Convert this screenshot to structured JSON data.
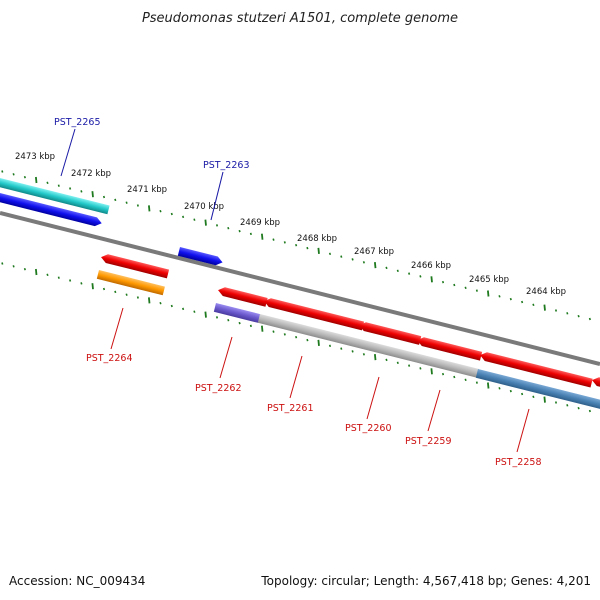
{
  "title": "Pseudomonas stutzeri A1501, complete genome",
  "footer": {
    "accession": "Accession: NC_009434",
    "summary": "Topology: circular; Length: 4,567,418 bp; Genes: 4,201"
  },
  "scale_ticks": [
    "2473 kbp",
    "2472 kbp",
    "2471 kbp",
    "2470 kbp",
    "2469 kbp",
    "2468 kbp",
    "2467 kbp",
    "2466 kbp",
    "2465 kbp",
    "2464 kbp"
  ],
  "genes": [
    {
      "id": "PST_2265",
      "color": "#1f1fd6"
    },
    {
      "id": "PST_2263",
      "color": "#1f1fd6"
    },
    {
      "id": "PST_2264",
      "color": "#cc1111"
    },
    {
      "id": "PST_2262",
      "color": "#cc1111"
    },
    {
      "id": "PST_2261",
      "color": "#cc1111"
    },
    {
      "id": "PST_2260",
      "color": "#cc1111"
    },
    {
      "id": "PST_2259",
      "color": "#cc1111"
    },
    {
      "id": "PST_2258",
      "color": "#cc1111"
    }
  ],
  "colors": {
    "backbone": "#7a7a7a",
    "tick_green": "#1f7a1f",
    "cds_red": "#ee0000",
    "cds_blue": "#1010ee",
    "cyan": "#22c8c8",
    "orange": "#ff9900",
    "violet": "#6a5acd",
    "grey_band": "#b8b8b8",
    "steel_blue": "#4a82b4"
  }
}
